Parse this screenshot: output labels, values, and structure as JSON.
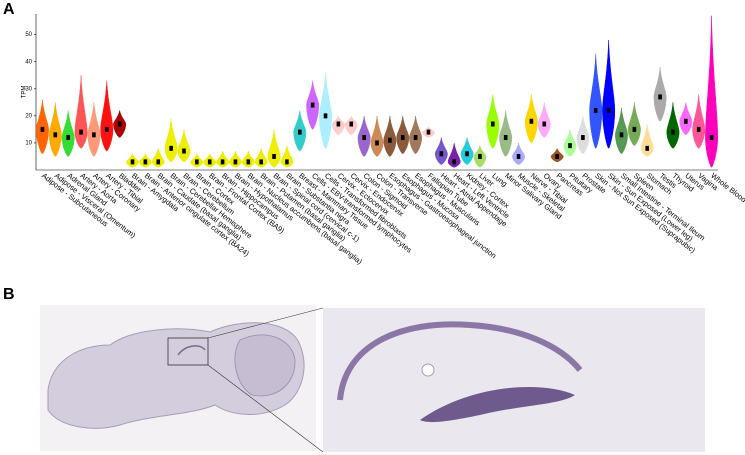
{
  "panel_labels": [
    "A",
    "B"
  ],
  "chart_data": {
    "type": "violin",
    "y_label": "TPM",
    "categories": [
      "Adipose - Subcutaneous",
      "Adipose - Visceral (Omentum)",
      "Adrenal Gland",
      "Artery - Aorta",
      "Artery - Coronary",
      "Artery - Tibial",
      "Bladder",
      "Brain - Amygdala",
      "Brain - Anterior cingulate cortex (BA24)",
      "Brain - Caudate (basal ganglia)",
      "Brain - Cerebellar Hemisphere",
      "Brain - Cerebellum",
      "Brain - Cortex",
      "Brain - Frontal Cortex (BA9)",
      "Brain - Hippocampus",
      "Brain - Hypothalamus",
      "Brain - Nucleus accumbens (basal ganglia)",
      "Brain - Putamen (basal ganglia)",
      "Brain - Spinal cord (cervical c-1)",
      "Brain - Substantia nigra",
      "Breast - Mammary Tissue",
      "Cells - EBV-transformed lymphocytes",
      "Cells - Transformed fibroblasts",
      "Cervix - Ectocervix",
      "Cervix - Endocervix",
      "Colon - Sigmoid",
      "Colon - Transverse",
      "Esophagus - Gastroesophageal junction",
      "Esophagus - Mucosa",
      "Esophagus - Muscularis",
      "Fallopian Tube",
      "Heart - Atrial Appendage",
      "Heart - Left Ventricle",
      "Kidney - Cortex",
      "Liver",
      "Lung",
      "Minor Salivary Gland",
      "Muscle - Skeletal",
      "Nerve - Tibial",
      "Ovary",
      "Pancreas",
      "Pituitary",
      "Prostate",
      "Skin - Not Sun Exposed (Suprapubic)",
      "Skin - Sun Exposed (Lower leg)",
      "Small Intestine - Terminal Ileum",
      "Spleen",
      "Stomach",
      "Testis",
      "Thyroid",
      "Uterus",
      "Vagina",
      "Whole Blood"
    ],
    "values": [
      15,
      13,
      12,
      14,
      13,
      15,
      17,
      3,
      3,
      3,
      8,
      7,
      3,
      3,
      3,
      3,
      3,
      3,
      5,
      3,
      14,
      24,
      20,
      17,
      17,
      12,
      10,
      11,
      12,
      12,
      14,
      6,
      3,
      6,
      5,
      17,
      12,
      5,
      18,
      17,
      5,
      9,
      12,
      22,
      22,
      13,
      15,
      8,
      27,
      14,
      18,
      15,
      12
    ],
    "mins": [
      6,
      5,
      5,
      8,
      5,
      7,
      12,
      1,
      1,
      1,
      3,
      3,
      1,
      1,
      1,
      1,
      1,
      1,
      1,
      1,
      7,
      15,
      8,
      13,
      13,
      5,
      5,
      5,
      6,
      6,
      12,
      2,
      1,
      2,
      1,
      8,
      5,
      2,
      10,
      12,
      3,
      5,
      6,
      8,
      8,
      6,
      9,
      5,
      18,
      8,
      13,
      8,
      1
    ],
    "maxs": [
      26,
      25,
      22,
      35,
      25,
      33,
      22,
      6,
      6,
      8,
      19,
      15,
      6,
      6,
      7,
      7,
      7,
      8,
      15,
      9,
      22,
      33,
      36,
      20,
      20,
      20,
      20,
      20,
      20,
      20,
      16,
      12,
      10,
      12,
      9,
      28,
      22,
      10,
      28,
      25,
      8,
      15,
      20,
      43,
      48,
      23,
      25,
      17,
      38,
      25,
      25,
      28,
      57
    ],
    "colors": [
      "#FF6600",
      "#FFAA00",
      "#33DD33",
      "#FF5555",
      "#FF9977",
      "#FF1111",
      "#AA0000",
      "#EEEE00",
      "#EEEE00",
      "#EEEE00",
      "#EEEE00",
      "#EEEE00",
      "#EEEE00",
      "#EEEE00",
      "#EEEE00",
      "#EEEE00",
      "#EEEE00",
      "#EEEE00",
      "#EEEE00",
      "#EEEE00",
      "#33CCCC",
      "#CC66FF",
      "#AAEEFF",
      "#FFCCCC",
      "#FFCCCC",
      "#9966CC",
      "#CC8855",
      "#8B5A3C",
      "#8B5A3C",
      "#A0785A",
      "#FFCCCC",
      "#7755CC",
      "#7722AA",
      "#22CCDD",
      "#AADD66",
      "#99FF00",
      "#99BB88",
      "#AAAAFF",
      "#FFD700",
      "#FFAAFF",
      "#995522",
      "#AAFF99",
      "#DDDDDD",
      "#3355FF",
      "#0000FF",
      "#559955",
      "#77AA55",
      "#FFDD99",
      "#AAAAAA",
      "#006600",
      "#FF66FF",
      "#FF5599",
      "#FF00BB"
    ],
    "ylim": [
      0,
      58
    ],
    "yticks": [
      10,
      20,
      30,
      40,
      50
    ]
  }
}
